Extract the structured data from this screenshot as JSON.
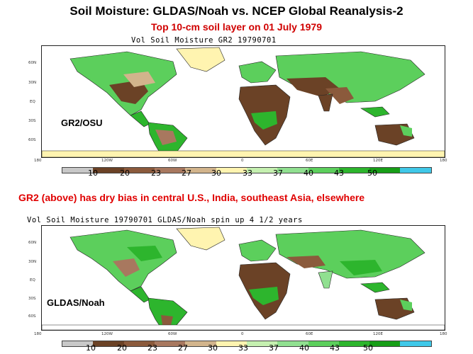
{
  "title": "Soil Moisture: GLDAS/Noah vs. NCEP Global Reanalysis-2",
  "subtitle": "Top 10-cm soil layer on 01 July 1979",
  "note": "GR2 (above) has dry bias in central U.S., India, southeast Asia, elsewhere",
  "maps": [
    {
      "plot_title": "Vol Soil Moisture GR2 19790701",
      "inset_label": "GR2/OSU",
      "lat_labels": [
        "60N",
        "30N",
        "EQ",
        "30S",
        "60S"
      ],
      "lon_labels": [
        "180",
        "120W",
        "60W",
        "0",
        "60E",
        "120E",
        "180"
      ]
    },
    {
      "plot_title": "Vol Soil Moisture 19790701 GLDAS/Noah spin up 4 1/2 years",
      "inset_label": "GLDAS/Noah",
      "lat_labels": [
        "60N",
        "30N",
        "EQ",
        "30S",
        "60S"
      ],
      "lon_labels": [
        "180",
        "120W",
        "60W",
        "0",
        "60E",
        "120E",
        "180"
      ]
    }
  ],
  "colorbar": {
    "ticks": [
      "10",
      "20",
      "23",
      "27",
      "30",
      "33",
      "37",
      "40",
      "43",
      "50"
    ],
    "colors": [
      "#c8c8c8",
      "#6b4226",
      "#8b5a3c",
      "#a8785f",
      "#d2b48c",
      "#fff4b0",
      "#c5f0b0",
      "#90e090",
      "#5ccf5c",
      "#2db52d",
      "#179e17",
      "#40c8e8"
    ]
  },
  "palette": {
    "ocean": "#ffffff",
    "ice": "#fff4b0",
    "dry": "#6b4226",
    "mid": "#d2b48c",
    "wet": "#5ccf5c",
    "verywet": "#2db52d",
    "title_red": "#d00000"
  }
}
